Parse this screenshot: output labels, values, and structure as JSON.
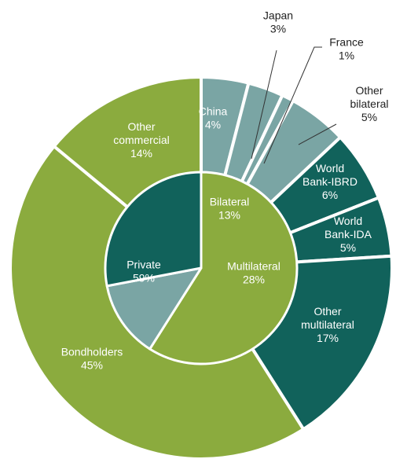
{
  "chart_data": {
    "type": "pie",
    "title": "",
    "colors": {
      "private": "#8bab3e",
      "bilateral": "#7aa5a4",
      "multilateral": "#11625b",
      "label_light": "#ffffff",
      "label_dark": "#222222"
    },
    "inner": [
      {
        "name": "Private",
        "value": 59,
        "pct_label": "59%",
        "color_key": "private"
      },
      {
        "name": "Bilateral",
        "value": 13,
        "pct_label": "13%",
        "color_key": "bilateral"
      },
      {
        "name": "Multilateral",
        "value": 28,
        "pct_label": "28%",
        "color_key": "multilateral"
      }
    ],
    "outer": [
      {
        "lines": [
          "China"
        ],
        "value": 4,
        "pct_label": "4%",
        "color_key": "bilateral",
        "label_pos": "inside"
      },
      {
        "lines": [
          "Japan"
        ],
        "value": 3,
        "pct_label": "3%",
        "color_key": "bilateral",
        "label_pos": "outside"
      },
      {
        "lines": [
          "France"
        ],
        "value": 1,
        "pct_label": "1%",
        "color_key": "bilateral",
        "label_pos": "outside"
      },
      {
        "lines": [
          "Other",
          "bilateral"
        ],
        "value": 5,
        "pct_label": "5%",
        "color_key": "bilateral",
        "label_pos": "outside"
      },
      {
        "lines": [
          "World",
          "Bank-IBRD"
        ],
        "value": 6,
        "pct_label": "6%",
        "color_key": "multilateral",
        "label_pos": "inside"
      },
      {
        "lines": [
          "World",
          "Bank-IDA"
        ],
        "value": 5,
        "pct_label": "5%",
        "color_key": "multilateral",
        "label_pos": "inside"
      },
      {
        "lines": [
          "Other",
          "multilateral"
        ],
        "value": 17,
        "pct_label": "17%",
        "color_key": "multilateral",
        "label_pos": "inside"
      },
      {
        "lines": [
          "Bondholders"
        ],
        "value": 45,
        "pct_label": "45%",
        "color_key": "private",
        "label_pos": "inside"
      },
      {
        "lines": [
          "Other",
          "commercial"
        ],
        "value": 14,
        "pct_label": "14%",
        "color_key": "private",
        "label_pos": "inside"
      }
    ]
  }
}
